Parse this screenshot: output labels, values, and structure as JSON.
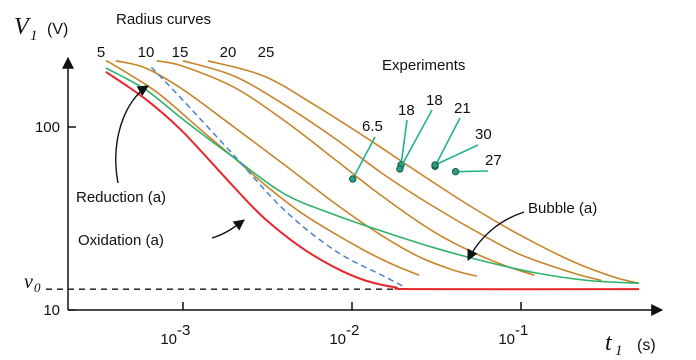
{
  "chart_data": {
    "type": "line",
    "title": "",
    "x_axis": {
      "symbol": "t",
      "subscript": "1",
      "unit": "(s)",
      "scale": "log",
      "ticks": [
        0.001,
        0.01,
        0.1
      ],
      "tick_base": "10",
      "tick_exps": [
        "-3",
        "-2",
        "-1"
      ]
    },
    "y_axis": {
      "symbol": "V",
      "subscript": "1",
      "unit": "(V)",
      "scale": "log",
      "ticks": [
        {
          "value": 10,
          "label": "10"
        },
        {
          "value": 100,
          "label": "100"
        }
      ]
    },
    "v0": {
      "symbol": "v",
      "subscript": "0",
      "value": 13,
      "line_style": "dashed"
    },
    "colors": {
      "radius": "#c8842a",
      "reduction": "#4a7fd4",
      "oxidation": "#e8262b",
      "bubble": "#2fb36a",
      "experiments": "#1fb48c",
      "dot_fill": "#2f9a80"
    },
    "radius_curves": {
      "heading": "Radius curves",
      "labels": [
        "5",
        "10",
        "15",
        "20",
        "25"
      ],
      "series": [
        {
          "name": "5",
          "points": [
            [
              0.00035,
              230
            ],
            [
              0.0004,
              215
            ],
            [
              0.0007,
              155
            ],
            [
              0.0013,
              95
            ],
            [
              0.002,
              68
            ],
            [
              0.003,
              49
            ],
            [
              0.005,
              34
            ],
            [
              0.008,
              26
            ],
            [
              0.012,
              21
            ],
            [
              0.018,
              17.5
            ],
            [
              0.025,
              15.5
            ]
          ]
        },
        {
          "name": "10",
          "points": [
            [
              0.0004,
              230
            ],
            [
              0.0006,
              210
            ],
            [
              0.001,
              160
            ],
            [
              0.002,
              100
            ],
            [
              0.004,
              62
            ],
            [
              0.008,
              38
            ],
            [
              0.015,
              25.5
            ],
            [
              0.025,
              19.5
            ],
            [
              0.04,
              16.5
            ],
            [
              0.055,
              15.3
            ]
          ]
        },
        {
          "name": "15",
          "points": [
            [
              0.0007,
              230
            ],
            [
              0.001,
              215
            ],
            [
              0.002,
              165
            ],
            [
              0.004,
              108
            ],
            [
              0.008,
              66
            ],
            [
              0.015,
              42
            ],
            [
              0.03,
              27
            ],
            [
              0.05,
              21
            ],
            [
              0.08,
              17.5
            ],
            [
              0.12,
              15.5
            ]
          ]
        },
        {
          "name": "20",
          "points": [
            [
              0.001,
              230
            ],
            [
              0.002,
              190
            ],
            [
              0.004,
              132
            ],
            [
              0.008,
              86
            ],
            [
              0.015,
              56
            ],
            [
              0.03,
              37
            ],
            [
              0.06,
              25.5
            ],
            [
              0.1,
              20
            ],
            [
              0.2,
              16
            ],
            [
              0.3,
              14.5
            ]
          ]
        },
        {
          "name": "25",
          "points": [
            [
              0.0014,
              230
            ],
            [
              0.003,
              190
            ],
            [
              0.006,
              132
            ],
            [
              0.012,
              88
            ],
            [
              0.025,
              56
            ],
            [
              0.05,
              37
            ],
            [
              0.1,
              25.5
            ],
            [
              0.2,
              18.5
            ],
            [
              0.35,
              15.2
            ],
            [
              0.5,
              14
            ]
          ]
        }
      ]
    },
    "reduction": {
      "label": "Reduction (a)",
      "points": [
        [
          0.00065,
          212
        ],
        [
          0.001,
          140
        ],
        [
          0.002,
          70
        ],
        [
          0.004,
          35
        ],
        [
          0.008,
          21
        ],
        [
          0.015,
          15.5
        ],
        [
          0.02,
          13.5
        ]
      ]
    },
    "oxidation": {
      "label": "Oxidation (a)",
      "points": [
        [
          0.00035,
          200
        ],
        [
          0.0006,
          142
        ],
        [
          0.001,
          94
        ],
        [
          0.002,
          47
        ],
        [
          0.003,
          32
        ],
        [
          0.005,
          22
        ],
        [
          0.008,
          17
        ],
        [
          0.012,
          14.5
        ],
        [
          0.018,
          13.3
        ],
        [
          0.025,
          13
        ],
        [
          0.5,
          13
        ]
      ]
    },
    "bubble": {
      "label": "Bubble (a)",
      "points": [
        [
          0.00035,
          210
        ],
        [
          0.0006,
          160
        ],
        [
          0.001,
          110
        ],
        [
          0.002,
          68
        ],
        [
          0.004,
          43
        ],
        [
          0.008,
          33
        ],
        [
          0.015,
          27
        ],
        [
          0.03,
          22
        ],
        [
          0.06,
          18.5
        ],
        [
          0.12,
          16
        ],
        [
          0.25,
          14.5
        ],
        [
          0.5,
          14
        ]
      ]
    },
    "experiments": {
      "heading": "Experiments",
      "points": [
        {
          "label": "6.5",
          "x": 0.0101,
          "y": 52
        },
        {
          "label": "18",
          "x": 0.0195,
          "y": 62
        },
        {
          "label": "18",
          "x": 0.0192,
          "y": 59
        },
        {
          "label": "21",
          "x": 0.031,
          "y": 61
        },
        {
          "label": "30",
          "x": 0.031,
          "y": 62
        },
        {
          "label": "27",
          "x": 0.041,
          "y": 57
        }
      ]
    }
  }
}
